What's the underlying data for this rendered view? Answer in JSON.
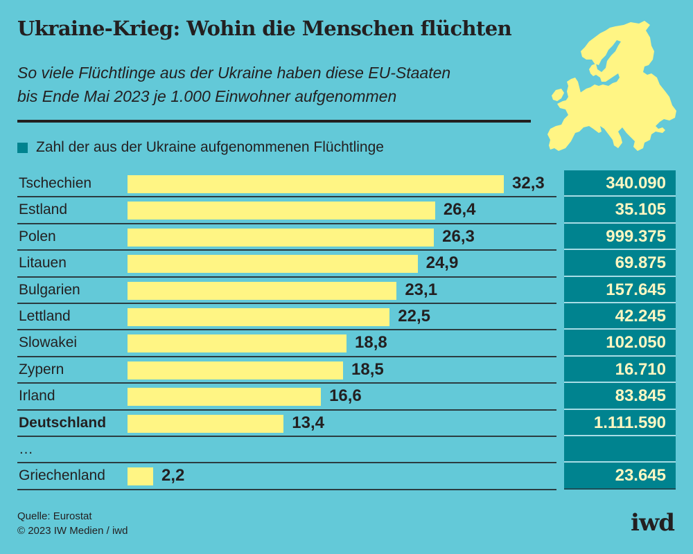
{
  "header": {
    "title": "Ukraine-Krieg: Wohin die Menschen flüchten",
    "subtitle_line1": "So viele Flüchtlinge aus der Ukraine haben diese EU-Staaten",
    "subtitle_line2": "bis Ende Mai 2023 je 1.000 Einwohner aufgenommen",
    "map_icon": "europe-map-icon"
  },
  "legend": {
    "label": "Zahl der aus der Ukraine aufgenommenen Flüchtlinge"
  },
  "colors": {
    "background": "#63c9d8",
    "bar": "#fff584",
    "column": "#00838f",
    "column_text": "#fff7c2",
    "text": "#231f20"
  },
  "chart_data": {
    "type": "bar",
    "orientation": "horizontal",
    "title": "Ukraine-Krieg: Wohin die Menschen flüchten",
    "subtitle": "So viele Flüchtlinge aus der Ukraine haben diese EU-Staaten bis Ende Mai 2023 je 1.000 Einwohner aufgenommen",
    "xlabel": "",
    "ylabel": "",
    "xlim": [
      0,
      32.3
    ],
    "grid": false,
    "legend_placement": "top-left",
    "value_unit": "Flüchtlinge je 1.000 Einwohner",
    "rows": [
      {
        "country": "Tschechien",
        "value": 32.3,
        "value_label": "32,3",
        "refugees": 340090,
        "refugees_label": "340.090",
        "bold": false
      },
      {
        "country": "Estland",
        "value": 26.4,
        "value_label": "26,4",
        "refugees": 35105,
        "refugees_label": "35.105",
        "bold": false
      },
      {
        "country": "Polen",
        "value": 26.3,
        "value_label": "26,3",
        "refugees": 999375,
        "refugees_label": "999.375",
        "bold": false
      },
      {
        "country": "Litauen",
        "value": 24.9,
        "value_label": "24,9",
        "refugees": 69875,
        "refugees_label": "69.875",
        "bold": false
      },
      {
        "country": "Bulgarien",
        "value": 23.1,
        "value_label": "23,1",
        "refugees": 157645,
        "refugees_label": "157.645",
        "bold": false
      },
      {
        "country": "Lettland",
        "value": 22.5,
        "value_label": "22,5",
        "refugees": 42245,
        "refugees_label": "42.245",
        "bold": false
      },
      {
        "country": "Slowakei",
        "value": 18.8,
        "value_label": "18,8",
        "refugees": 102050,
        "refugees_label": "102.050",
        "bold": false
      },
      {
        "country": "Zypern",
        "value": 18.5,
        "value_label": "18,5",
        "refugees": 16710,
        "refugees_label": "16.710",
        "bold": false
      },
      {
        "country": "Irland",
        "value": 16.6,
        "value_label": "16,6",
        "refugees": 83845,
        "refugees_label": "83.845",
        "bold": false
      },
      {
        "country": "Deutschland",
        "value": 13.4,
        "value_label": "13,4",
        "refugees": 1111590,
        "refugees_label": "1.111.590",
        "bold": true
      },
      {
        "country": "…",
        "value": null,
        "value_label": "",
        "refugees": null,
        "refugees_label": "",
        "bold": false
      },
      {
        "country": "Griechenland",
        "value": 2.2,
        "value_label": "2,2",
        "refugees": 23645,
        "refugees_label": "23.645",
        "bold": false
      }
    ]
  },
  "footer": {
    "source": "Quelle: Eurostat",
    "copyright": "© 2023 IW Medien / iwd",
    "logo": "iwd"
  }
}
